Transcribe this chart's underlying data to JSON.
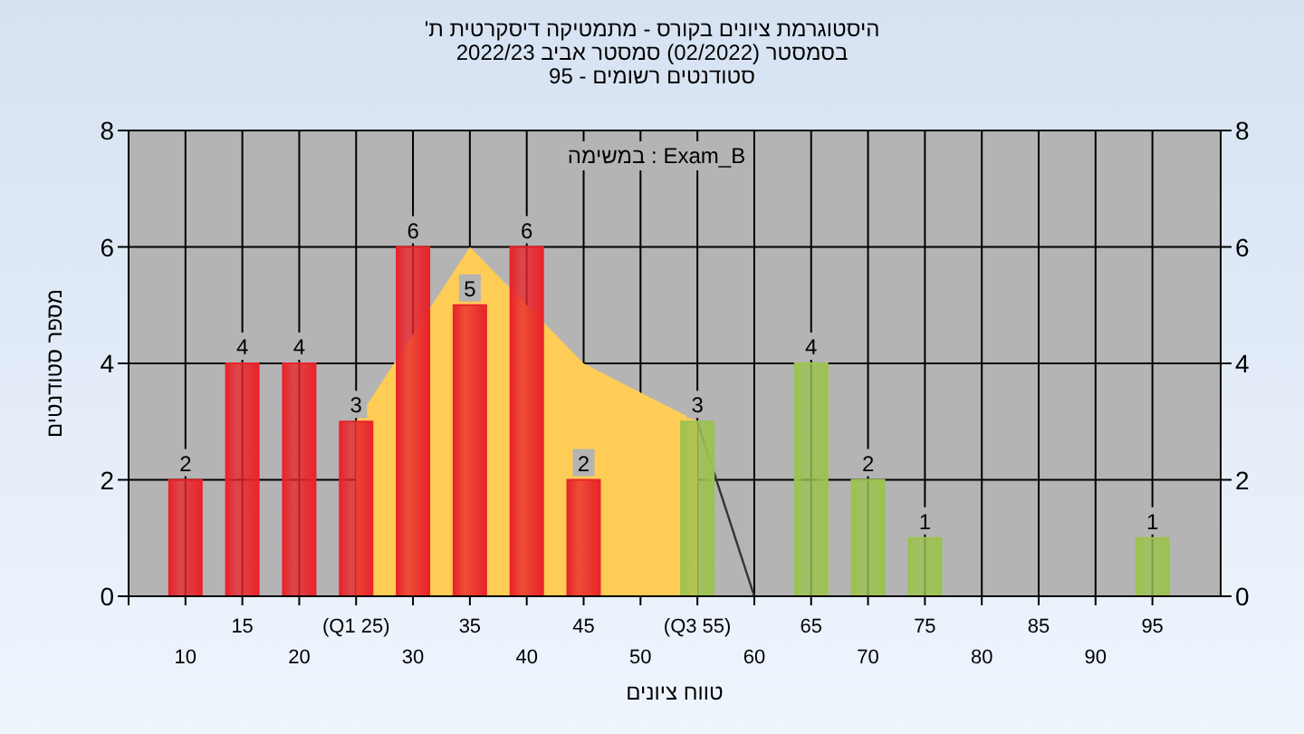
{
  "chart_data": {
    "type": "bar",
    "title": "היסטוגרמת ציונים בקורס - מתמטיקה דיסקרטית ת'",
    "subtitle": "בסמסטר (02/2022) סמסטר אביב 2022/23\nסטודנטים רשומים - 95",
    "xlabel": "טווח ציונים",
    "ylabel": "מספר סטודנטים",
    "annotations": [
      "במשימה : Exam_B"
    ],
    "categories": [
      "10",
      "15",
      "20",
      "(Q1 25)",
      "30",
      "35",
      "40",
      "45",
      "50",
      "(Q3 55)",
      "60",
      "65",
      "70",
      "75",
      "80",
      "85",
      "90",
      "95"
    ],
    "series": [
      {
        "type": "area",
        "color": "#ffcc55",
        "values": [
          null,
          null,
          null,
          3,
          null,
          6,
          null,
          4,
          3.5,
          3,
          null,
          null,
          null,
          null,
          null,
          null,
          null,
          null
        ]
      },
      {
        "type": "line",
        "color": "#333333",
        "values": [
          null,
          null,
          null,
          null,
          null,
          null,
          null,
          null,
          null,
          3,
          0,
          null,
          null,
          null,
          null,
          null,
          null,
          null
        ]
      },
      {
        "colors": [
          "#e8242a",
          "#e8242a",
          "#e8242a",
          "#e8242a",
          "#e8242a",
          "#e8242a",
          "#e8242a",
          "#e8242a",
          "#e8242a",
          "#9cc24f",
          "#9cc24f",
          "#9cc24f",
          "#9cc24f",
          "#9cc24f",
          "#9cc24f",
          "#9cc24f",
          "#9cc24f",
          "#9cc24f"
        ],
        "values": [
          2,
          4,
          4,
          3,
          6,
          5,
          6,
          2,
          0,
          3,
          0,
          4,
          2,
          1,
          0,
          0,
          0,
          1
        ],
        "value_labels": [
          "2",
          "4",
          "4",
          "3",
          "6",
          "5",
          "6",
          "2",
          null,
          "3",
          null,
          "4",
          "2",
          "1",
          null,
          null,
          null,
          "1"
        ]
      }
    ],
    "ylim": [
      0,
      8
    ],
    "yticks": [
      0,
      2,
      4,
      6,
      8
    ],
    "y2lim": [
      0,
      8
    ],
    "y2ticks": [
      0,
      2,
      4,
      6,
      8
    ],
    "grid": true
  }
}
